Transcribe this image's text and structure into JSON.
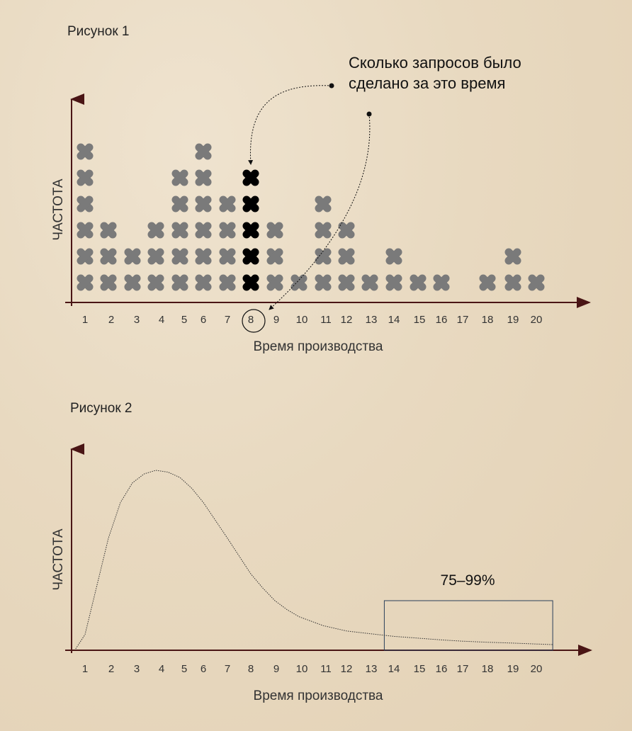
{
  "chart_data": [
    {
      "type": "scatter",
      "title": "Рисунок 1",
      "xlabel": "Время производства",
      "ylabel": "ЧАСТОТА",
      "x_ticks": [
        "1",
        "2",
        "3",
        "4",
        "5",
        "6",
        "7",
        "8",
        "9",
        "10",
        "11",
        "12",
        "13",
        "14",
        "15",
        "16",
        "17",
        "18",
        "19",
        "20"
      ],
      "counts": [
        6,
        3,
        2,
        3,
        5,
        6,
        4,
        5,
        3,
        1,
        4,
        3,
        1,
        2,
        1,
        1,
        0,
        1,
        2,
        1
      ],
      "highlight_x": "8",
      "annotation": [
        "Сколько запросов было",
        "сделано за это время"
      ],
      "colors": {
        "marker": "#7a7a7a",
        "highlight": "#000000",
        "axis": "#4a1515"
      }
    },
    {
      "type": "line",
      "title": "Рисунок 2",
      "xlabel": "Время производства",
      "ylabel": "ЧАСТОТА",
      "x_ticks": [
        "1",
        "2",
        "3",
        "4",
        "5",
        "6",
        "7",
        "8",
        "9",
        "10",
        "11",
        "12",
        "13",
        "14",
        "15",
        "16",
        "17",
        "18",
        "19",
        "20"
      ],
      "curve_x": [
        0.6,
        1,
        1.5,
        2,
        2.5,
        3,
        3.5,
        4,
        4.5,
        5,
        5.5,
        6,
        6.5,
        7,
        7.5,
        8,
        8.5,
        9,
        9.5,
        10,
        11,
        12,
        13,
        14,
        15,
        16,
        17,
        18,
        19,
        20,
        20.7
      ],
      "curve_y": [
        0,
        0.08,
        0.35,
        0.62,
        0.82,
        0.93,
        0.98,
        1.0,
        0.99,
        0.96,
        0.9,
        0.82,
        0.72,
        0.62,
        0.52,
        0.42,
        0.34,
        0.27,
        0.22,
        0.18,
        0.13,
        0.1,
        0.085,
        0.07,
        0.06,
        0.05,
        0.043,
        0.037,
        0.032,
        0.027,
        0.024
      ],
      "highlight_range": {
        "label": "75–99%",
        "x_from": 13.6,
        "x_to": 20.7
      },
      "colors": {
        "line": "#333333",
        "axis": "#4a1515",
        "box": "#2a3f5a"
      }
    }
  ]
}
